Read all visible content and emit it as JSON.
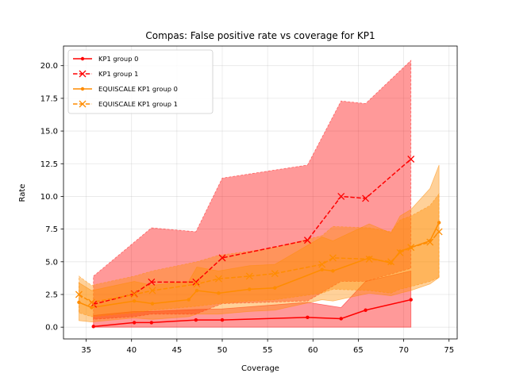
{
  "chart_data": {
    "type": "line",
    "title": "Compas: False positive rate vs coverage for KP1",
    "xlabel": "Coverage",
    "ylabel": "Rate",
    "xlim": [
      32.5,
      75.9
    ],
    "ylim": [
      -0.9,
      21.5
    ],
    "xticks": [
      "35",
      "40",
      "45",
      "50",
      "55",
      "60",
      "65",
      "70",
      "75"
    ],
    "yticks": [
      "0.0",
      "2.5",
      "5.0",
      "7.5",
      "10.0",
      "12.5",
      "15.0",
      "17.5",
      "20.0"
    ],
    "grid": true,
    "legend_position": "upper-left",
    "series": [
      {
        "name": "KP1 group 0",
        "color": "#ff0000",
        "linestyle": "solid",
        "marker": "dot",
        "x": [
          35.8,
          40.3,
          42.2,
          47.1,
          50.0,
          59.4,
          63.1,
          65.8,
          70.8
        ],
        "y": [
          0.05,
          0.35,
          0.35,
          0.55,
          0.55,
          0.75,
          0.65,
          1.3,
          2.1
        ],
        "band_low": [
          0.0,
          0.0,
          0.0,
          0.0,
          0.0,
          0.0,
          0.0,
          0.0,
          0.0
        ],
        "band_high": [
          0.9,
          1.2,
          1.2,
          1.35,
          1.4,
          1.9,
          1.5,
          3.5,
          4.3
        ]
      },
      {
        "name": "KP1 group 1",
        "color": "#ff0000",
        "linestyle": "dashed",
        "marker": "x",
        "x": [
          35.8,
          40.3,
          42.2,
          47.1,
          50.0,
          59.4,
          63.1,
          65.8,
          70.8
        ],
        "y": [
          1.75,
          2.55,
          3.45,
          3.45,
          5.3,
          6.65,
          10.0,
          9.85,
          12.85
        ],
        "band_low": [
          0.6,
          0.8,
          1.0,
          1.0,
          1.8,
          2.0,
          3.5,
          3.5,
          4.5
        ],
        "band_high": [
          3.9,
          6.5,
          7.6,
          7.3,
          11.4,
          12.4,
          17.3,
          17.1,
          20.4
        ]
      },
      {
        "name": "EQUISCALE KP1 group 0",
        "color": "#ff8c00",
        "linestyle": "solid",
        "marker": "dot",
        "x": [
          34.2,
          35.6,
          40.3,
          42.3,
          46.3,
          47.2,
          49.6,
          53.0,
          55.8,
          61.0,
          62.2,
          66.2,
          68.6,
          69.6,
          70.8,
          72.9,
          73.9
        ],
        "y": [
          1.9,
          1.5,
          2.0,
          1.8,
          2.1,
          2.8,
          2.6,
          2.9,
          3.0,
          4.4,
          4.3,
          5.3,
          4.9,
          5.8,
          6.1,
          6.6,
          8.0
        ],
        "band_low": [
          0.5,
          0.4,
          0.7,
          0.6,
          0.8,
          1.0,
          1.0,
          1.2,
          1.3,
          2.1,
          2.0,
          2.6,
          2.4,
          2.6,
          2.8,
          3.3,
          3.8
        ],
        "band_high": [
          3.4,
          2.8,
          3.5,
          3.2,
          3.5,
          4.6,
          4.3,
          4.7,
          4.8,
          6.9,
          6.6,
          7.9,
          7.2,
          8.5,
          9.0,
          10.6,
          12.4
        ]
      },
      {
        "name": "EQUISCALE KP1 group 1",
        "color": "#ff8c00",
        "linestyle": "dashed",
        "marker": "x",
        "x": [
          34.2,
          35.6,
          40.3,
          42.3,
          47.2,
          49.6,
          53.0,
          55.8,
          61.0,
          62.2,
          66.2,
          68.6,
          69.6,
          70.8,
          72.9,
          73.9
        ],
        "y": [
          2.5,
          1.9,
          2.5,
          2.8,
          3.3,
          3.7,
          3.9,
          4.1,
          4.8,
          5.3,
          5.2,
          5.0,
          5.7,
          6.1,
          6.5,
          7.3
        ],
        "band_low": [
          1.1,
          0.8,
          1.1,
          1.3,
          1.6,
          1.8,
          2.0,
          2.1,
          2.6,
          2.9,
          2.8,
          2.6,
          2.9,
          3.1,
          3.5,
          3.8
        ],
        "band_high": [
          3.9,
          3.2,
          3.9,
          4.3,
          5.0,
          5.5,
          5.8,
          6.1,
          7.0,
          7.7,
          7.6,
          7.3,
          8.2,
          8.5,
          9.3,
          10.2
        ]
      }
    ]
  }
}
